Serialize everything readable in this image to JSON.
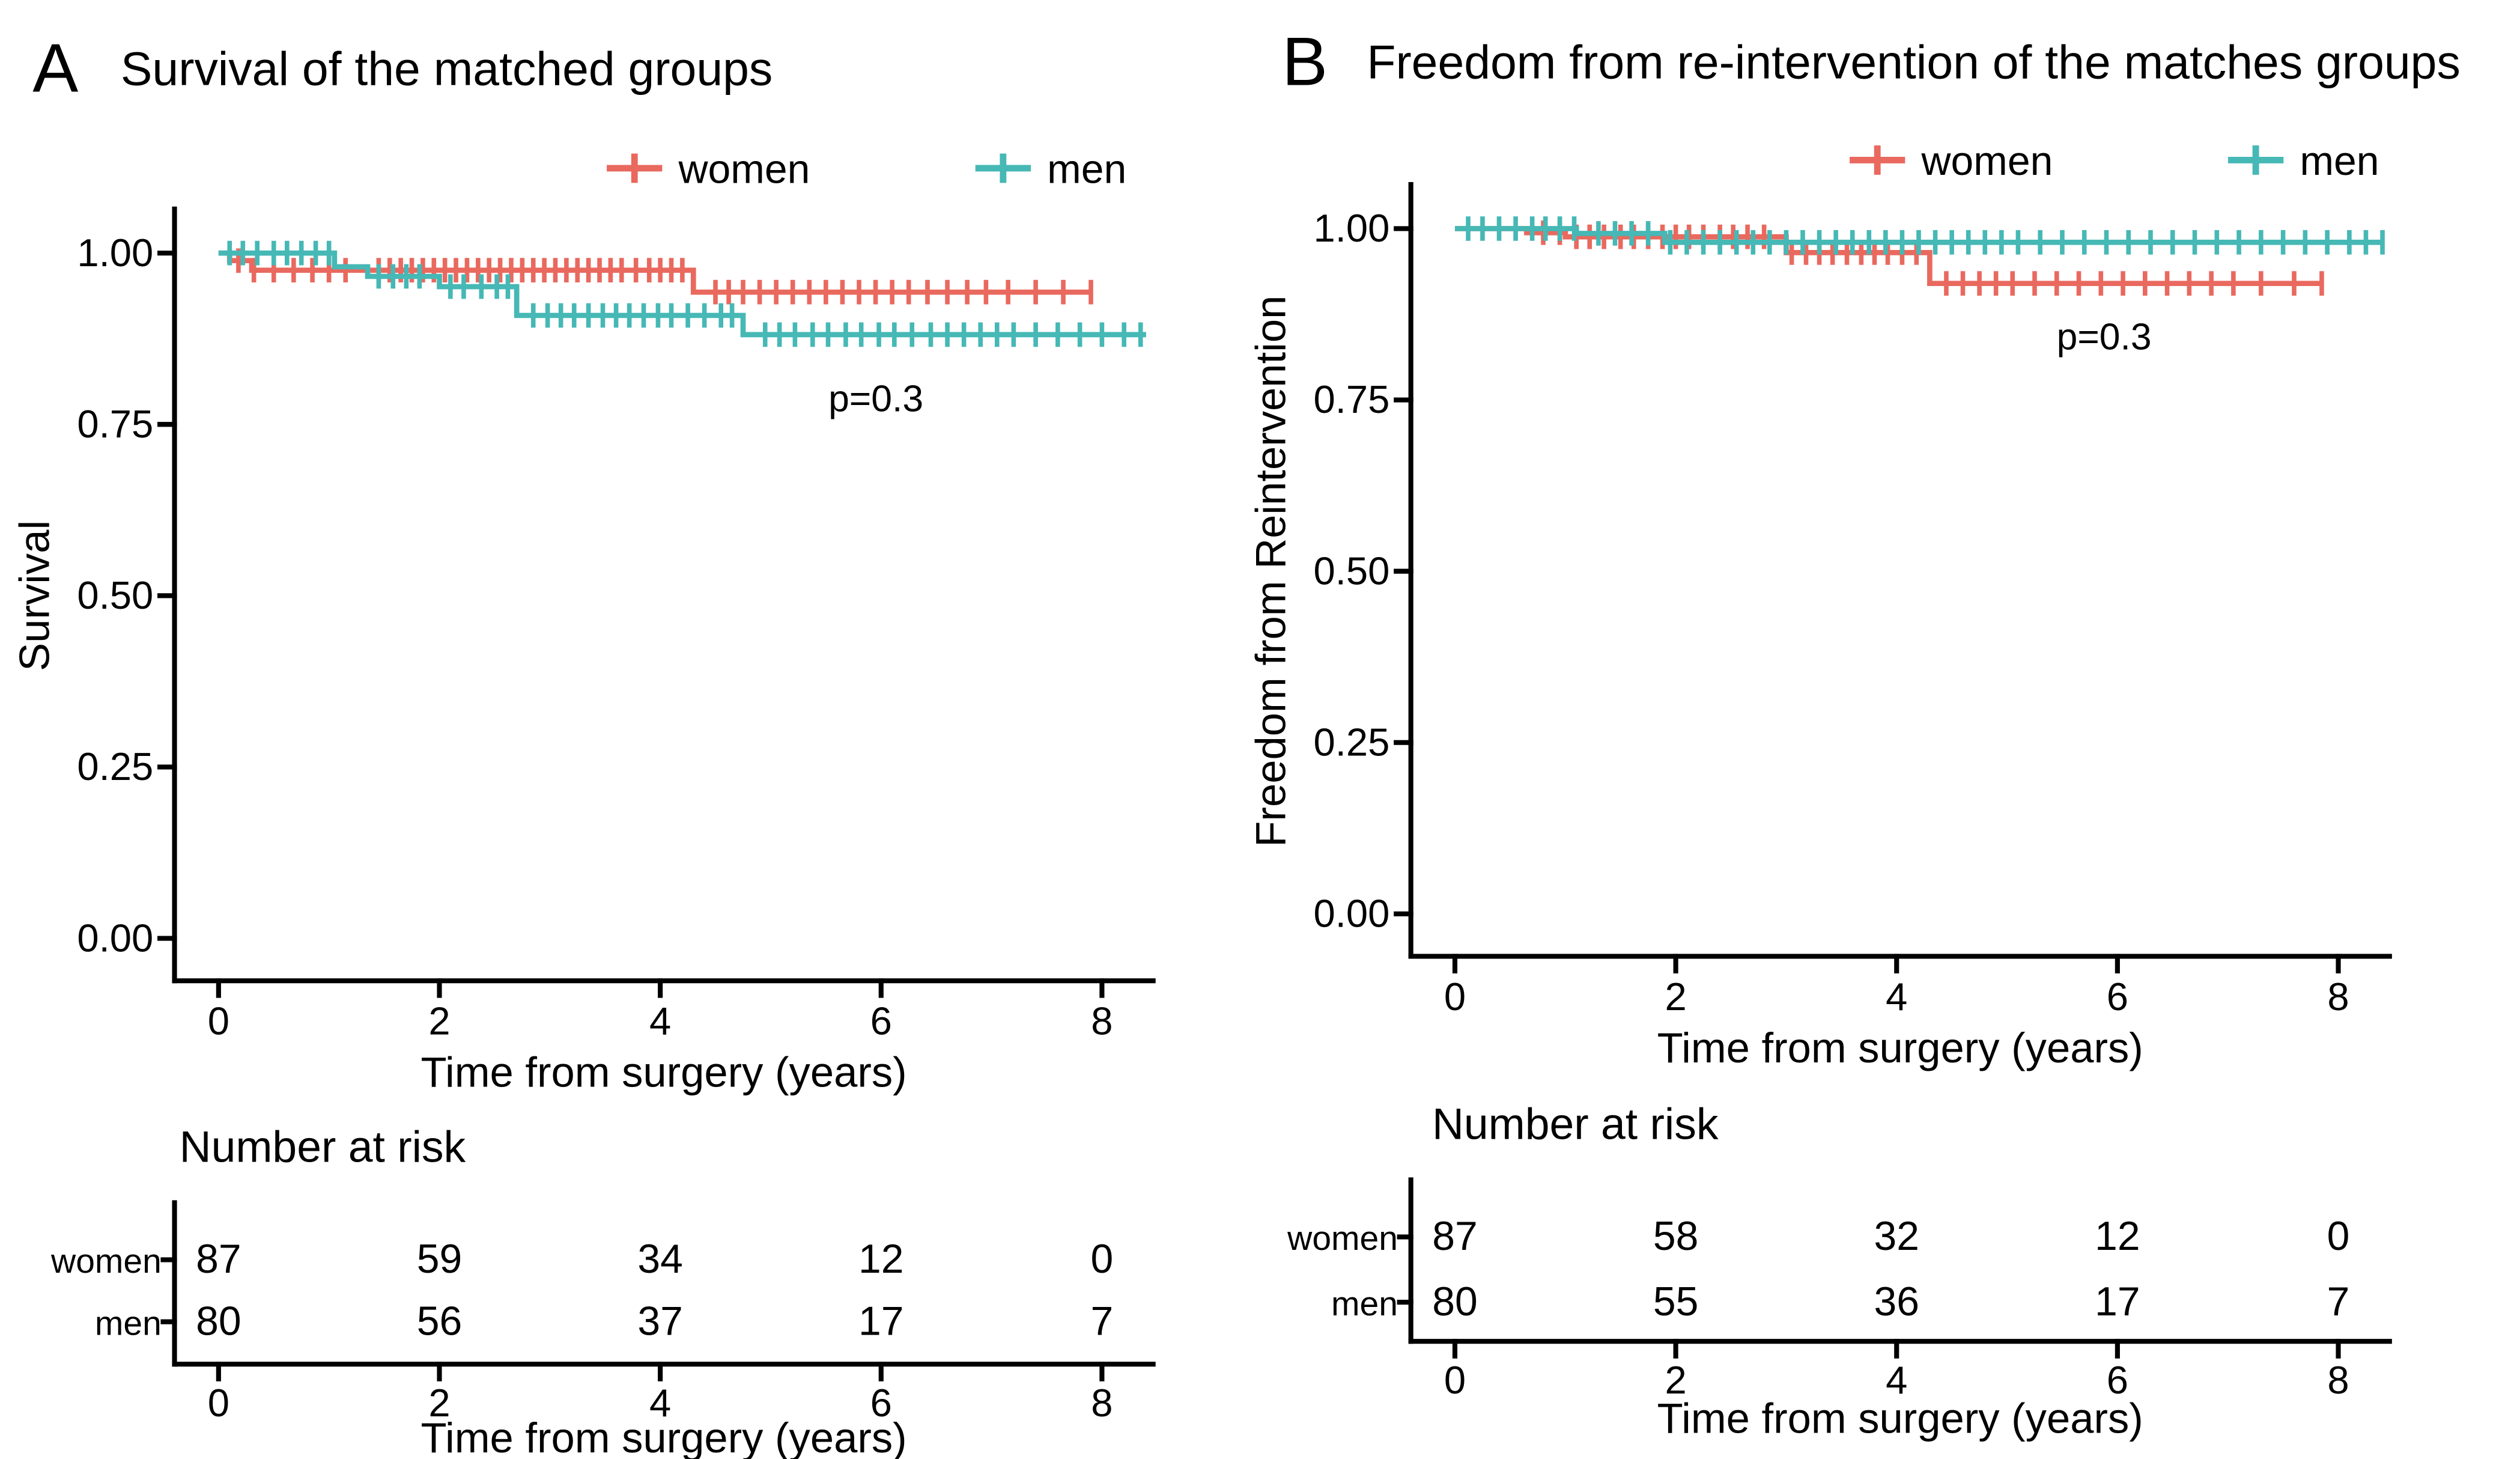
{
  "page": {
    "background": "#FFFFFF",
    "text_color": "#000000",
    "figure_kind": "kaplan_meier_two_panel"
  },
  "chart_data": [
    {
      "type": "line",
      "subtype": "kaplan_meier_step",
      "panel_label": "A",
      "title": "Survival of the matched groups",
      "xlabel": "Time from surgery (years)",
      "ylabel": "Survival",
      "p_value_annotation": "p=0.3",
      "xlim": [
        0,
        8.6
      ],
      "ylim": [
        0.0,
        1.0
      ],
      "x_ticks": [
        "0",
        "2",
        "4",
        "6",
        "8"
      ],
      "y_ticks": [
        "1.00",
        "0.75",
        "0.50",
        "0.25",
        "0.00"
      ],
      "grid": false,
      "legend_position": "top",
      "series": [
        {
          "name": "women",
          "color": "#E9695F",
          "steps": [
            [
              0,
              1.0
            ],
            [
              0.1,
              0.989
            ],
            [
              0.3,
              0.975
            ],
            [
              4.3,
              0.943
            ]
          ],
          "end_time": 7.9,
          "censor_times": [
            0.18,
            0.32,
            0.5,
            0.68,
            0.85,
            1.0,
            1.15,
            1.45,
            1.55,
            1.65,
            1.75,
            1.85,
            1.95,
            2.05,
            2.15,
            2.25,
            2.35,
            2.45,
            2.55,
            2.65,
            2.75,
            2.85,
            2.95,
            3.05,
            3.15,
            3.25,
            3.35,
            3.45,
            3.55,
            3.65,
            3.78,
            3.9,
            4.0,
            4.1,
            4.2,
            4.5,
            4.62,
            4.75,
            4.9,
            5.05,
            5.2,
            5.35,
            5.5,
            5.65,
            5.8,
            5.95,
            6.1,
            6.25,
            6.42,
            6.6,
            6.78,
            6.95,
            7.15,
            7.4,
            7.65,
            7.9
          ]
        },
        {
          "name": "men",
          "color": "#46B8B5",
          "steps": [
            [
              0,
              1.0
            ],
            [
              1.05,
              0.98
            ],
            [
              1.35,
              0.966
            ],
            [
              2.0,
              0.951
            ],
            [
              2.7,
              0.909
            ],
            [
              4.75,
              0.881
            ]
          ],
          "end_time": 8.4,
          "censor_times": [
            0.1,
            0.22,
            0.35,
            0.5,
            0.62,
            0.75,
            0.88,
            1.0,
            1.45,
            1.58,
            1.7,
            1.82,
            2.1,
            2.22,
            2.38,
            2.52,
            2.62,
            2.85,
            2.98,
            3.1,
            3.22,
            3.35,
            3.48,
            3.6,
            3.72,
            3.85,
            3.98,
            4.1,
            4.25,
            4.4,
            4.55,
            4.65,
            4.95,
            5.08,
            5.22,
            5.38,
            5.52,
            5.68,
            5.82,
            5.98,
            6.12,
            6.28,
            6.45,
            6.6,
            6.75,
            6.9,
            7.05,
            7.2,
            7.4,
            7.6,
            7.8,
            8.0,
            8.2,
            8.35
          ]
        }
      ],
      "risk_table": {
        "title": "Number at risk",
        "time_points": [
          "0",
          "2",
          "4",
          "6",
          "8"
        ],
        "rows": [
          {
            "name": "women",
            "values": [
              "87",
              "59",
              "34",
              "12",
              "0"
            ]
          },
          {
            "name": "men",
            "values": [
              "80",
              "56",
              "37",
              "17",
              "7"
            ]
          }
        ]
      }
    },
    {
      "type": "line",
      "subtype": "kaplan_meier_step",
      "panel_label": "B",
      "title": "Freedom from re-intervention of the matches groups",
      "xlabel": "Time from surgery (years)",
      "ylabel": "Freedom from Reintervention",
      "p_value_annotation": "p=0.3",
      "xlim": [
        0,
        8.6
      ],
      "ylim": [
        0.0,
        1.0
      ],
      "x_ticks": [
        "0",
        "2",
        "4",
        "6",
        "8"
      ],
      "y_ticks": [
        "1.00",
        "0.75",
        "0.50",
        "0.25",
        "0.00"
      ],
      "grid": false,
      "legend_position": "top",
      "series": [
        {
          "name": "women",
          "color": "#E9695F",
          "steps": [
            [
              0,
              1.0
            ],
            [
              0.65,
              0.994
            ],
            [
              1.0,
              0.988
            ],
            [
              3.0,
              0.965
            ],
            [
              4.3,
              0.92
            ]
          ],
          "end_time": 7.85,
          "censor_times": [
            0.8,
            0.95,
            1.1,
            1.22,
            1.35,
            1.5,
            1.62,
            1.75,
            1.88,
            2.0,
            2.12,
            2.25,
            2.4,
            2.52,
            2.65,
            2.8,
            3.05,
            3.18,
            3.3,
            3.42,
            3.55,
            3.68,
            3.8,
            3.92,
            4.05,
            4.18,
            4.45,
            4.6,
            4.75,
            4.9,
            5.05,
            5.25,
            5.45,
            5.65,
            5.85,
            6.05,
            6.25,
            6.45,
            6.65,
            6.85,
            7.05,
            7.3,
            7.6,
            7.85
          ]
        },
        {
          "name": "men",
          "color": "#46B8B5",
          "steps": [
            [
              0,
              1.0
            ],
            [
              1.1,
              0.993
            ],
            [
              1.9,
              0.98
            ]
          ],
          "end_time": 8.4,
          "censor_times": [
            0.12,
            0.25,
            0.4,
            0.55,
            0.7,
            0.82,
            0.95,
            1.08,
            1.3,
            1.45,
            1.6,
            1.75,
            1.95,
            2.1,
            2.25,
            2.4,
            2.55,
            2.7,
            2.85,
            3.0,
            3.15,
            3.3,
            3.45,
            3.6,
            3.75,
            3.9,
            4.05,
            4.2,
            4.35,
            4.5,
            4.65,
            4.8,
            4.95,
            5.1,
            5.3,
            5.5,
            5.7,
            5.9,
            6.1,
            6.3,
            6.5,
            6.7,
            6.9,
            7.1,
            7.3,
            7.5,
            7.7,
            7.9,
            8.1,
            8.25,
            8.4
          ]
        }
      ],
      "risk_table": {
        "title": "Number at risk",
        "time_points": [
          "0",
          "2",
          "4",
          "6",
          "8"
        ],
        "rows": [
          {
            "name": "women",
            "values": [
              "87",
              "58",
              "32",
              "12",
              "0"
            ]
          },
          {
            "name": "men",
            "values": [
              "80",
              "55",
              "36",
              "17",
              "7"
            ]
          }
        ]
      }
    }
  ]
}
